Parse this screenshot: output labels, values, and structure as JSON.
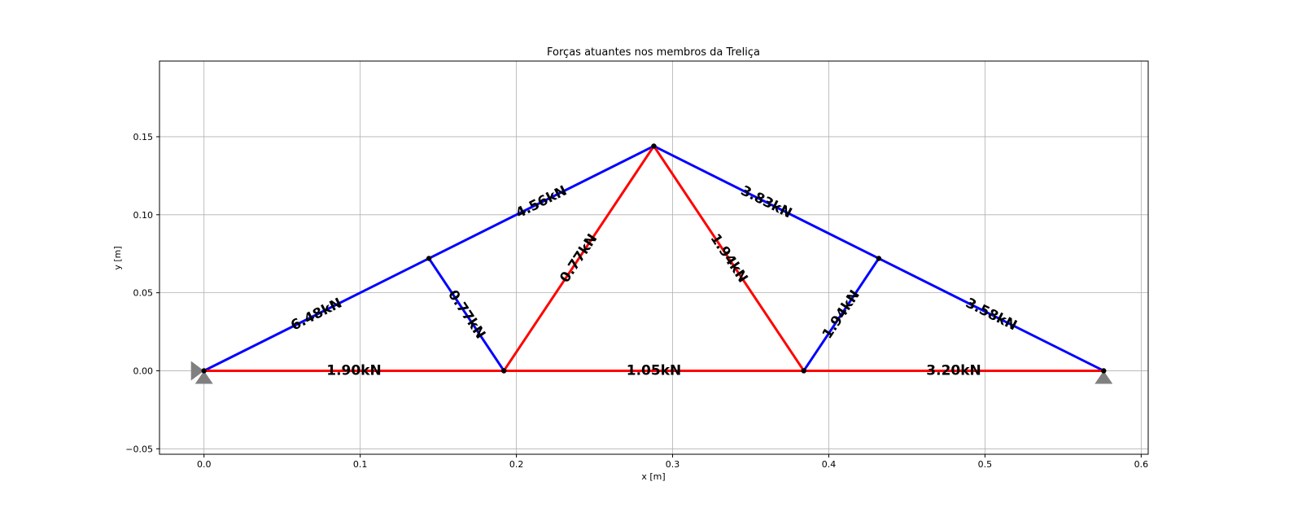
{
  "chart_data": {
    "type": "truss",
    "title": "Forças atuantes nos membros da Treliça",
    "xlabel": "x [m]",
    "ylabel": "y [m]",
    "xlim": [
      -0.0285,
      0.6045
    ],
    "ylim": [
      -0.0535,
      0.1985
    ],
    "xticks": [
      0.0,
      0.1,
      0.2,
      0.3,
      0.4,
      0.5,
      0.6
    ],
    "xtick_labels": [
      "0.0",
      "0.1",
      "0.2",
      "0.3",
      "0.4",
      "0.5",
      "0.6"
    ],
    "yticks": [
      -0.05,
      0.0,
      0.05,
      0.1,
      0.15
    ],
    "ytick_labels": [
      "−0.05",
      "0.00",
      "0.05",
      "0.10",
      "0.15"
    ],
    "grid": true,
    "colors": {
      "tension": "#ff0000",
      "compression": "#0000ff",
      "support": "#808080",
      "node": "#000000"
    },
    "nodes": [
      {
        "id": 1,
        "x": 0.0,
        "y": 0.0
      },
      {
        "id": 2,
        "x": 0.144,
        "y": 0.072
      },
      {
        "id": 3,
        "x": 0.192,
        "y": 0.0
      },
      {
        "id": 4,
        "x": 0.288,
        "y": 0.144
      },
      {
        "id": 5,
        "x": 0.384,
        "y": 0.0
      },
      {
        "id": 6,
        "x": 0.432,
        "y": 0.072
      },
      {
        "id": 7,
        "x": 0.576,
        "y": 0.0
      }
    ],
    "members": [
      {
        "from": 1,
        "to": 2,
        "force": "6.48kN",
        "state": "compression"
      },
      {
        "from": 2,
        "to": 4,
        "force": "4.56kN",
        "state": "compression"
      },
      {
        "from": 4,
        "to": 6,
        "force": "3.83kN",
        "state": "compression"
      },
      {
        "from": 6,
        "to": 7,
        "force": "3.58kN",
        "state": "compression"
      },
      {
        "from": 2,
        "to": 3,
        "force": "0.77kN",
        "state": "compression"
      },
      {
        "from": 5,
        "to": 6,
        "force": "1.94kN",
        "state": "compression"
      },
      {
        "from": 3,
        "to": 4,
        "force": "0.77kN",
        "state": "tension"
      },
      {
        "from": 4,
        "to": 5,
        "force": "1.94kN",
        "state": "tension"
      },
      {
        "from": 1,
        "to": 3,
        "force": "1.90kN",
        "state": "tension"
      },
      {
        "from": 3,
        "to": 5,
        "force": "1.05kN",
        "state": "tension"
      },
      {
        "from": 5,
        "to": 7,
        "force": "3.20kN",
        "state": "tension"
      }
    ],
    "supports": [
      {
        "node": 1,
        "kind": "pin"
      },
      {
        "node": 7,
        "kind": "roller"
      }
    ]
  }
}
